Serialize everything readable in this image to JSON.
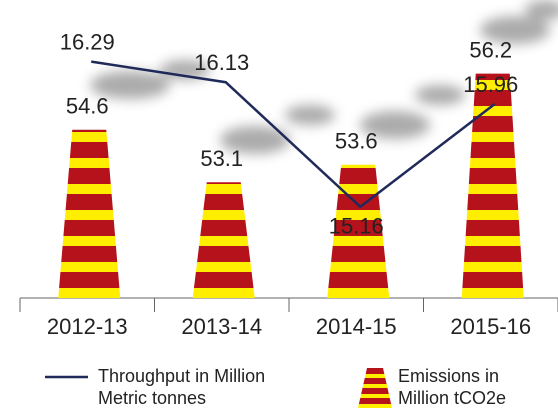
{
  "chart_data": {
    "type": "bar",
    "categories": [
      "2012-13",
      "2013-14",
      "2014-15",
      "2015-16"
    ],
    "series": [
      {
        "name": "Emissions  in Million tCO2e",
        "type": "bar",
        "color": "#b5121b",
        "stripe_color": "#ffee00",
        "values": [
          54.6,
          53.1,
          53.6,
          56.2
        ]
      },
      {
        "name": "Throughput in Million Metric tonnes",
        "type": "line",
        "axis": "y2",
        "color": "#1f2a5a",
        "values": [
          16.29,
          16.13,
          15.16,
          15.96
        ]
      }
    ],
    "ylim": [
      49.8,
      58.3
    ],
    "y2lim": [
      14.45,
      16.77
    ]
  }
}
